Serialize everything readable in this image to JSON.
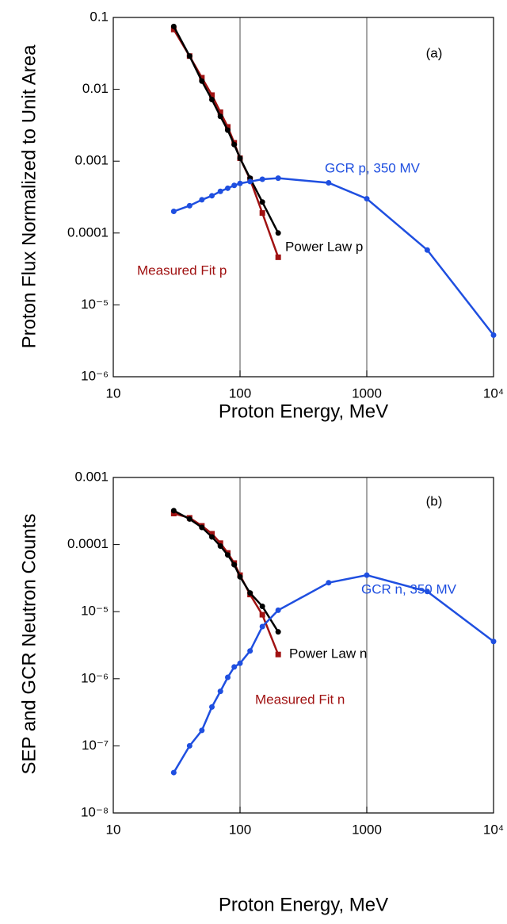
{
  "chart_data": [
    {
      "type": "line",
      "annotation": "(a)",
      "xlabel": "Proton Energy, MeV",
      "ylabel": "Proton Flux Normalized to Unit Area",
      "xscale": "log",
      "yscale": "log",
      "grid": "x",
      "xlim": [
        10,
        10000
      ],
      "ylim": [
        1e-06,
        0.1
      ],
      "xticks": [
        10,
        100,
        1000,
        {
          "value": 10000,
          "label": "10⁴"
        }
      ],
      "yticks": [
        {
          "value": 1e-06,
          "label": "10⁻⁶"
        },
        {
          "value": 1e-05,
          "label": "10⁻⁵"
        },
        0.0001,
        0.001,
        0.01,
        0.1
      ],
      "series": [
        {
          "name": "Measured Fit p",
          "color": "#a01212",
          "marker": "square",
          "x": [
            30,
            40,
            50,
            60,
            70,
            80,
            90,
            100,
            120,
            150,
            200
          ],
          "values": [
            0.068,
            0.029,
            0.0145,
            0.0083,
            0.0048,
            0.003,
            0.0018,
            0.0011,
            0.00056,
            0.00019,
            4.6e-05
          ]
        },
        {
          "name": "Power Law p",
          "color": "#000000",
          "marker": "circle",
          "x": [
            30,
            40,
            50,
            60,
            70,
            80,
            90,
            100,
            120,
            150,
            200
          ],
          "values": [
            0.075,
            0.029,
            0.013,
            0.0072,
            0.0042,
            0.0027,
            0.0017,
            0.0011,
            0.00058,
            0.00027,
            0.0001
          ]
        },
        {
          "name": "GCR p, 350 MV",
          "color": "#1f4fe0",
          "marker": "circle",
          "x": [
            30,
            40,
            50,
            60,
            70,
            80,
            90,
            100,
            120,
            150,
            200,
            500,
            1000,
            3000,
            10000
          ],
          "values": [
            0.0002,
            0.00024,
            0.00029,
            0.00033,
            0.00038,
            0.00042,
            0.00046,
            0.00049,
            0.00052,
            0.00056,
            0.00058,
            0.0005,
            0.0003,
            5.8e-05,
            3.8e-06
          ]
        }
      ]
    },
    {
      "type": "line",
      "annotation": "(b)",
      "xlabel": "Proton Energy, MeV",
      "ylabel": "SEP and GCR Neutron Counts",
      "xscale": "log",
      "yscale": "log",
      "grid": "x",
      "xlim": [
        10,
        10000
      ],
      "ylim": [
        1e-08,
        0.001
      ],
      "xticks": [
        10,
        100,
        1000,
        {
          "value": 10000,
          "label": "10⁴"
        }
      ],
      "yticks": [
        {
          "value": 1e-08,
          "label": "10⁻⁸"
        },
        {
          "value": 1e-07,
          "label": "10⁻⁷"
        },
        {
          "value": 1e-06,
          "label": "10⁻⁶"
        },
        {
          "value": 1e-05,
          "label": "10⁻⁵"
        },
        0.0001,
        0.001
      ],
      "series": [
        {
          "name": "Measured Fit n",
          "color": "#a01212",
          "marker": "square",
          "x": [
            30,
            40,
            50,
            60,
            70,
            80,
            90,
            100,
            120,
            150,
            200
          ],
          "values": [
            0.00029,
            0.00025,
            0.00019,
            0.000145,
            0.000105,
            7.5e-05,
            5.3e-05,
            3.5e-05,
            1.8e-05,
            9e-06,
            2.3e-06
          ]
        },
        {
          "name": "Power Law n",
          "color": "#000000",
          "marker": "circle",
          "x": [
            30,
            40,
            50,
            60,
            70,
            80,
            90,
            100,
            120,
            150,
            200
          ],
          "values": [
            0.00032,
            0.00024,
            0.00018,
            0.00013,
            9.5e-05,
            7e-05,
            5e-05,
            3.3e-05,
            1.9e-05,
            1.2e-05,
            5e-06
          ]
        },
        {
          "name": "GCR n, 350 MV",
          "color": "#1f4fe0",
          "marker": "circle",
          "x": [
            30,
            40,
            50,
            60,
            70,
            80,
            90,
            100,
            120,
            150,
            200,
            500,
            1000,
            3000,
            10000
          ],
          "values": [
            4e-08,
            1e-07,
            1.7e-07,
            3.8e-07,
            6.5e-07,
            1.05e-06,
            1.5e-06,
            1.7e-06,
            2.6e-06,
            6e-06,
            1.05e-05,
            2.7e-05,
            3.5e-05,
            2e-05,
            3.6e-06
          ]
        }
      ]
    }
  ]
}
